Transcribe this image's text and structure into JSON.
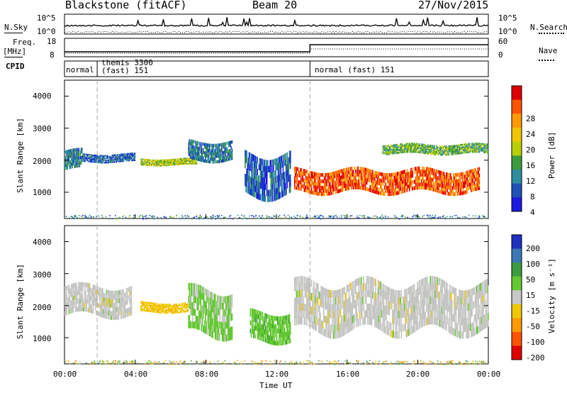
{
  "header": {
    "station": "Blackstone (fitACF)",
    "beam": "Beam 20",
    "date": "27/Nov/2015"
  },
  "sky_panel": {
    "left_label": "N.Sky",
    "right_label": "N.Search",
    "left_ticks": [
      "10^5",
      "10^0"
    ],
    "right_ticks": [
      "10^5",
      "10^0"
    ]
  },
  "freq_panel": {
    "left_label_line1": "Freq.",
    "left_label_line2": "[MHz]",
    "right_label": "Nave",
    "left_ticks": [
      "18",
      "8"
    ],
    "right_ticks": [
      "60",
      "0"
    ]
  },
  "cpid": {
    "label": "CPID",
    "segments": [
      {
        "start_hour": 0.0,
        "text": "normal"
      },
      {
        "start_hour": 1.85,
        "text": "themis 3300",
        "text2": "(fast) 151"
      },
      {
        "start_hour": 13.9,
        "text": "normal (fast) 151"
      }
    ]
  },
  "power_panel": {
    "ylabel": "Slant Range [km]",
    "colorbar_label": "Power [dB]",
    "colorbar_ticks": [
      "28",
      "24",
      "20",
      "16",
      "12",
      "8",
      "4"
    ],
    "colors": [
      "#e00000",
      "#ff5500",
      "#ff9a00",
      "#f2c400",
      "#b8d000",
      "#3c9b3c",
      "#2e8ea0",
      "#2050b8",
      "#1a1ae0"
    ]
  },
  "velocity_panel": {
    "ylabel": "Slant Range [km]",
    "colorbar_label": "Velocity [m s⁻¹]",
    "colorbar_ticks": [
      "200",
      "100",
      "50",
      "15",
      "-15",
      "-50",
      "-100",
      "-200"
    ],
    "colors": [
      "#2030c0",
      "#3c78b8",
      "#3c9b3c",
      "#64c832",
      "#c8c8c8",
      "#f0c800",
      "#ff9a00",
      "#ff5500",
      "#e00000"
    ],
    "ground_scatter_color": "#c4c4c0"
  },
  "chart_data": [
    {
      "type": "heatmap",
      "title": "Power",
      "x": {
        "label": "Time UT",
        "range": [
          0,
          24
        ],
        "ticks": [
          "00:00",
          "04:00",
          "08:00",
          "12:00",
          "16:00",
          "20:00",
          "00:00"
        ]
      },
      "y": {
        "label": "Slant Range [km]",
        "range": [
          180,
          4500
        ],
        "ticks": [
          1000,
          2000,
          3000,
          4000
        ]
      },
      "colorbar": {
        "label": "Power [dB]",
        "range": [
          0,
          30
        ],
        "ticks": [
          4,
          8,
          12,
          16,
          20,
          24,
          28
        ]
      },
      "bands": [
        {
          "t0": 0.0,
          "t1": 1.0,
          "r0": 1700,
          "r1": 2300,
          "mean": 8
        },
        {
          "t0": 1.0,
          "t1": 4.0,
          "r0": 1950,
          "r1": 2200,
          "mean": 6
        },
        {
          "t0": 4.3,
          "t1": 7.5,
          "r0": 1850,
          "r1": 2050,
          "mean": 15
        },
        {
          "t0": 7.0,
          "t1": 9.5,
          "r0": 2000,
          "r1": 2600,
          "mean": 8
        },
        {
          "t0": 10.2,
          "t1": 12.8,
          "r0": 900,
          "r1": 2200,
          "mean": 6
        },
        {
          "t0": 13.0,
          "t1": 23.5,
          "r0": 1000,
          "r1": 1700,
          "mean": 25
        },
        {
          "t0": 18.0,
          "t1": 24.0,
          "r0": 2200,
          "r1": 2500,
          "mean": 12
        }
      ]
    },
    {
      "type": "heatmap",
      "title": "Velocity",
      "x": {
        "label": "Time UT",
        "range": [
          0,
          24
        ],
        "ticks": [
          "00:00",
          "04:00",
          "08:00",
          "12:00",
          "16:00",
          "20:00",
          "00:00"
        ]
      },
      "y": {
        "label": "Slant Range [km]",
        "range": [
          180,
          4500
        ],
        "ticks": [
          1000,
          2000,
          3000,
          4000
        ]
      },
      "colorbar": {
        "label": "Velocity [m s⁻¹]",
        "range": [
          -250,
          250
        ],
        "ticks": [
          -200,
          -100,
          -50,
          -15,
          15,
          50,
          100,
          200
        ]
      },
      "bands": [
        {
          "t0": 0.0,
          "t1": 3.8,
          "r0": 1700,
          "r1": 2600,
          "mean": 0
        },
        {
          "t0": 4.3,
          "t1": 7.0,
          "r0": 1800,
          "r1": 2100,
          "mean": -60
        },
        {
          "t0": 7.0,
          "t1": 9.5,
          "r0": 1100,
          "r1": 2500,
          "mean": 40
        },
        {
          "t0": 10.5,
          "t1": 12.8,
          "r0": 900,
          "r1": 1800,
          "mean": 60
        },
        {
          "t0": 13.0,
          "t1": 24.0,
          "r0": 1200,
          "r1": 2700,
          "mean": 0
        }
      ]
    }
  ]
}
